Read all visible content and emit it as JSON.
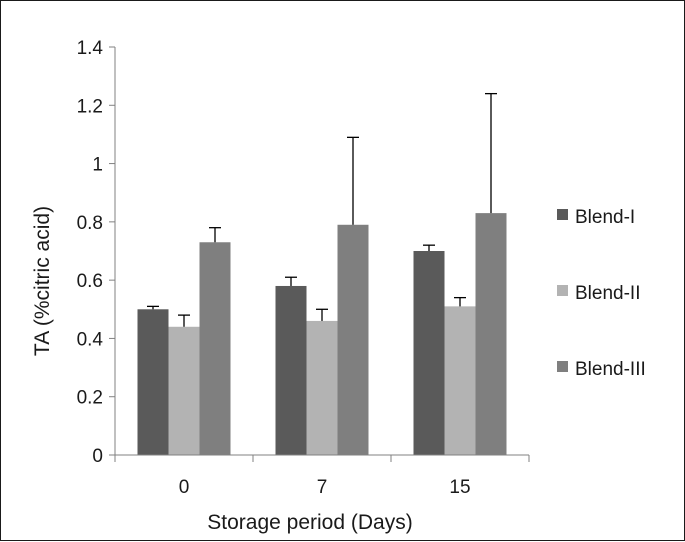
{
  "chart_data": {
    "type": "bar",
    "categories": [
      "0",
      "7",
      "15"
    ],
    "series": [
      {
        "name": "Blend-I",
        "values": [
          0.5,
          0.58,
          0.7
        ],
        "errors": [
          0.01,
          0.03,
          0.02
        ],
        "color": "#5a5a5a"
      },
      {
        "name": "Blend-II",
        "values": [
          0.44,
          0.46,
          0.51
        ],
        "errors": [
          0.04,
          0.04,
          0.03
        ],
        "color": "#b3b3b3"
      },
      {
        "name": "Blend-III",
        "values": [
          0.73,
          0.79,
          0.83
        ],
        "errors": [
          0.05,
          0.3,
          0.41
        ],
        "color": "#7f7f7f"
      }
    ],
    "xlabel": "Storage period (Days)",
    "ylabel": "TA (%citric acid)",
    "ylim": [
      0,
      1.4
    ],
    "yticks": [
      "0",
      "0.2",
      "0.4",
      "0.6",
      "0.8",
      "1",
      "1.2",
      "1.4"
    ],
    "ytick_values": [
      0,
      0.2,
      0.4,
      0.6,
      0.8,
      1.0,
      1.2,
      1.4
    ],
    "grid": false,
    "legend_position": "right"
  }
}
